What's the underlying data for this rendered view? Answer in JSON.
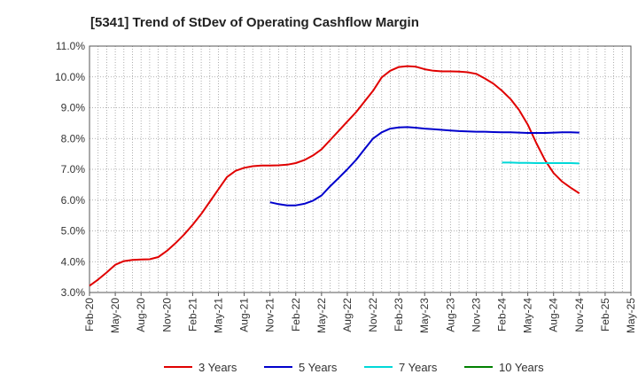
{
  "chart_data": {
    "type": "line",
    "title": "[5341]  Trend of StDev of Operating Cashflow Margin",
    "xlabel": "",
    "ylabel": "",
    "x_ticks": [
      "Feb-20",
      "May-20",
      "Aug-20",
      "Nov-20",
      "Feb-21",
      "May-21",
      "Aug-21",
      "Nov-21",
      "Feb-22",
      "May-22",
      "Aug-22",
      "Nov-22",
      "Feb-23",
      "May-23",
      "Aug-23",
      "Nov-23",
      "Feb-24",
      "May-24",
      "Aug-24",
      "Nov-24",
      "Feb-25",
      "May-25"
    ],
    "y_ticks": [
      "3.0%",
      "4.0%",
      "5.0%",
      "6.0%",
      "7.0%",
      "8.0%",
      "9.0%",
      "10.0%",
      "11.0%"
    ],
    "ylim": [
      3.0,
      11.0
    ],
    "x_start": "Feb-20",
    "x_end": "May-25",
    "grid": true,
    "legend_position": "bottom",
    "series": [
      {
        "name": "3 Years",
        "color": "#e00000",
        "x": [
          "Feb-20",
          "Mar-20",
          "Apr-20",
          "May-20",
          "Jun-20",
          "Jul-20",
          "Aug-20",
          "Sep-20",
          "Oct-20",
          "Nov-20",
          "Dec-20",
          "Jan-21",
          "Feb-21",
          "Mar-21",
          "Apr-21",
          "May-21",
          "Jun-21",
          "Jul-21",
          "Aug-21",
          "Sep-21",
          "Oct-21",
          "Nov-21",
          "Dec-21",
          "Jan-22",
          "Feb-22",
          "Mar-22",
          "Apr-22",
          "May-22",
          "Jun-22",
          "Jul-22",
          "Aug-22",
          "Sep-22",
          "Oct-22",
          "Nov-22",
          "Dec-22",
          "Jan-23",
          "Feb-23",
          "Mar-23",
          "Apr-23",
          "May-23",
          "Jun-23",
          "Jul-23",
          "Aug-23",
          "Sep-23",
          "Oct-23",
          "Nov-23",
          "Dec-23",
          "Jan-24",
          "Feb-24",
          "Mar-24",
          "Apr-24",
          "May-24",
          "Jun-24",
          "Jul-24",
          "Aug-24",
          "Sep-24",
          "Oct-24",
          "Nov-24"
        ],
        "values": [
          3.22,
          3.42,
          3.65,
          3.9,
          4.02,
          4.06,
          4.07,
          4.08,
          4.15,
          4.35,
          4.6,
          4.88,
          5.2,
          5.55,
          5.95,
          6.35,
          6.75,
          6.95,
          7.05,
          7.1,
          7.12,
          7.12,
          7.13,
          7.15,
          7.2,
          7.3,
          7.45,
          7.65,
          7.95,
          8.25,
          8.55,
          8.85,
          9.2,
          9.55,
          9.98,
          10.2,
          10.32,
          10.35,
          10.33,
          10.25,
          10.2,
          10.18,
          10.18,
          10.17,
          10.15,
          10.1,
          9.95,
          9.78,
          9.55,
          9.28,
          8.92,
          8.45,
          7.85,
          7.3,
          6.88,
          6.6,
          6.4,
          6.22
        ]
      },
      {
        "name": "5 Years",
        "color": "#0000cc",
        "x": [
          "Nov-21",
          "Dec-21",
          "Jan-22",
          "Feb-22",
          "Mar-22",
          "Apr-22",
          "May-22",
          "Jun-22",
          "Jul-22",
          "Aug-22",
          "Sep-22",
          "Oct-22",
          "Nov-22",
          "Dec-22",
          "Jan-23",
          "Feb-23",
          "Mar-23",
          "Apr-23",
          "May-23",
          "Jun-23",
          "Jul-23",
          "Aug-23",
          "Sep-23",
          "Oct-23",
          "Nov-23",
          "Dec-23",
          "Jan-24",
          "Feb-24",
          "Mar-24",
          "Apr-24",
          "May-24",
          "Jun-24",
          "Jul-24",
          "Aug-24",
          "Sep-24",
          "Oct-24",
          "Nov-24"
        ],
        "values": [
          5.93,
          5.87,
          5.83,
          5.83,
          5.88,
          5.98,
          6.15,
          6.45,
          6.72,
          7.0,
          7.3,
          7.65,
          8.0,
          8.2,
          8.32,
          8.36,
          8.37,
          8.35,
          8.32,
          8.3,
          8.28,
          8.26,
          8.24,
          8.23,
          8.22,
          8.22,
          8.21,
          8.2,
          8.2,
          8.19,
          8.18,
          8.18,
          8.18,
          8.19,
          8.2,
          8.2,
          8.19
        ]
      },
      {
        "name": "7 Years",
        "color": "#00d8d8",
        "x": [
          "Feb-24",
          "Mar-24",
          "Apr-24",
          "May-24",
          "Jun-24",
          "Jul-24",
          "Aug-24",
          "Sep-24",
          "Oct-24",
          "Nov-24"
        ],
        "values": [
          7.22,
          7.22,
          7.21,
          7.21,
          7.2,
          7.2,
          7.2,
          7.2,
          7.2,
          7.19
        ]
      },
      {
        "name": "10 Years",
        "color": "#008000",
        "x": [],
        "values": []
      }
    ]
  }
}
